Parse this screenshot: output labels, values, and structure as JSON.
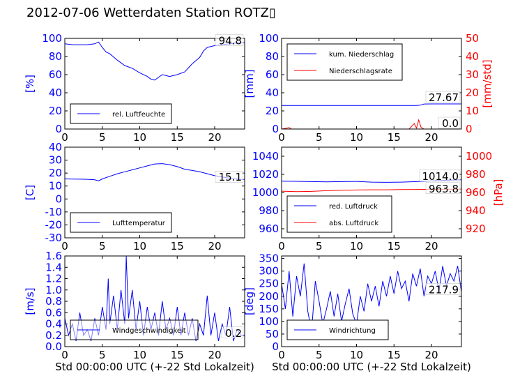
{
  "title": "2012-07-06 Wetterdaten Station ROTZ▯",
  "colors": {
    "primary": "#0000ff",
    "secondary": "#ff0000",
    "text": "#000000"
  },
  "chart_data": [
    {
      "type": "line",
      "ylabel": "[%]",
      "ylabel_color": "blue",
      "xlim": [
        0,
        24
      ],
      "ylim": [
        0,
        100
      ],
      "xticks": [
        0,
        5,
        10,
        15,
        20
      ],
      "yticks": [
        0,
        20,
        40,
        60,
        80,
        100
      ],
      "legend": [
        "rel. Luftfeuchte"
      ],
      "legend_position": "lower left",
      "annotation": "94.8",
      "series": [
        {
          "name": "rel. Luftfeuchte",
          "color": "blue",
          "axis": "left",
          "x": [
            0,
            1,
            2,
            3,
            4,
            4.5,
            5,
            5.5,
            6,
            7,
            8,
            9,
            10,
            11,
            11.5,
            12,
            12.5,
            13,
            14,
            15,
            16,
            17,
            18,
            18.5,
            19,
            20,
            21,
            22,
            23,
            24
          ],
          "y": [
            94,
            93,
            93,
            93,
            94,
            96,
            90,
            85,
            83,
            76,
            70,
            67,
            62,
            58,
            55,
            54,
            57,
            60,
            58,
            60,
            63,
            72,
            79,
            86,
            90,
            92,
            93,
            94,
            95,
            95
          ]
        }
      ]
    },
    {
      "type": "line",
      "ylabel": "[mm]",
      "ylabel_color": "blue",
      "y2label": "[mm/std]",
      "y2label_color": "red",
      "xlim": [
        0,
        24
      ],
      "ylim": [
        0,
        100
      ],
      "y2lim": [
        0,
        50
      ],
      "xticks": [
        0,
        5,
        10,
        15,
        20
      ],
      "yticks": [
        0,
        20,
        40,
        60,
        80,
        100
      ],
      "y2ticks": [
        0,
        10,
        20,
        30,
        40,
        50
      ],
      "legend": [
        "kum. Niederschlag",
        "Niederschlagsrate"
      ],
      "legend_position": "upper left",
      "annotations": [
        "27.67",
        "0.0"
      ],
      "series": [
        {
          "name": "kum. Niederschlag",
          "color": "blue",
          "axis": "left",
          "x": [
            0,
            17,
            18,
            18.5,
            19,
            20,
            24
          ],
          "y": [
            25.9,
            25.9,
            26,
            26.3,
            27.6,
            27.67,
            27.67
          ]
        },
        {
          "name": "Niederschlagsrate",
          "color": "red",
          "axis": "right",
          "x": [
            0,
            0.7,
            1,
            1.3,
            2,
            17,
            17.7,
            18,
            18.3,
            18.6,
            19,
            19.3,
            20,
            24
          ],
          "y": [
            0,
            0.5,
            0.8,
            0,
            0,
            0,
            3,
            0.5,
            5,
            1,
            0,
            0,
            0,
            0
          ]
        }
      ]
    },
    {
      "type": "line",
      "ylabel": "[C]",
      "ylabel_color": "blue",
      "xlim": [
        0,
        24
      ],
      "ylim": [
        -30,
        40
      ],
      "xticks": [
        0,
        5,
        10,
        15,
        20
      ],
      "yticks": [
        -30,
        -20,
        -10,
        0,
        10,
        20,
        30,
        40
      ],
      "legend": [
        "Lufttemperatur"
      ],
      "legend_position": "lower left",
      "annotation": "15.1",
      "series": [
        {
          "name": "Lufttemperatur",
          "color": "blue",
          "axis": "left",
          "x": [
            0,
            1,
            2,
            3,
            4,
            4.5,
            5,
            6,
            7,
            8,
            9,
            10,
            11,
            12,
            13,
            14,
            15,
            16,
            17,
            18,
            19,
            20,
            21,
            22,
            23,
            24
          ],
          "y": [
            15.5,
            15.4,
            15.3,
            15.2,
            14.8,
            14.0,
            15.5,
            17.5,
            19.5,
            21,
            22.5,
            24,
            25.5,
            27,
            27.3,
            26.5,
            25,
            23,
            22,
            21,
            19.5,
            18,
            17,
            16,
            15.3,
            15.1
          ]
        }
      ]
    },
    {
      "type": "line",
      "ylabel": "[hPa]",
      "ylabel_color": "red",
      "ylabel_side": "right",
      "xlim": [
        0,
        24
      ],
      "ylim": [
        950,
        1050
      ],
      "y2lim": [
        910,
        1010
      ],
      "xticks": [
        0,
        5,
        10,
        15,
        20
      ],
      "yticks": [
        960,
        980,
        1000,
        1020,
        1040
      ],
      "y2ticks": [
        920,
        940,
        960,
        980,
        1000
      ],
      "legend": [
        "red. Luftdruck",
        "abs. Luftdruck"
      ],
      "legend_position": "lower left",
      "annotations": [
        "1014.0",
        "963.8"
      ],
      "series": [
        {
          "name": "red. Luftdruck",
          "color": "blue",
          "axis": "left",
          "x": [
            0,
            2,
            4,
            6,
            8,
            10,
            12,
            14,
            16,
            18,
            20,
            22,
            24
          ],
          "y": [
            1012.5,
            1012.3,
            1012,
            1011.8,
            1012,
            1012.2,
            1011.5,
            1011.2,
            1011.5,
            1012,
            1012.8,
            1013.5,
            1014
          ]
        },
        {
          "name": "abs. Luftdruck",
          "color": "red",
          "axis": "right",
          "x": [
            0,
            2,
            4,
            6,
            8,
            10,
            12,
            14,
            16,
            18,
            20,
            22,
            24
          ],
          "y": [
            961.5,
            961,
            961.2,
            962,
            962.5,
            962.8,
            963,
            963,
            963.2,
            963.4,
            963.5,
            963.7,
            963.8
          ]
        }
      ]
    },
    {
      "type": "line",
      "ylabel": "[m/s]",
      "ylabel_color": "blue",
      "xlabel": "Std 00:00:00 UTC (+-22 Std Lokalzeit)",
      "xlim": [
        0,
        24
      ],
      "ylim": [
        0,
        1.6
      ],
      "xticks": [
        0,
        5,
        10,
        15,
        20
      ],
      "yticks": [
        0.0,
        0.2,
        0.4,
        0.6,
        0.8,
        1.0,
        1.2,
        1.4,
        1.6
      ],
      "legend": [
        "Windgeschwindigkeit"
      ],
      "legend_position": "lower center",
      "annotation": "0.2",
      "series": [
        {
          "name": "Windgeschwindigkeit",
          "color": "blue",
          "axis": "left",
          "x": [
            0,
            0.5,
            1,
            1.5,
            2,
            2.5,
            3,
            3.5,
            4,
            4.5,
            5,
            5.5,
            5.8,
            6,
            6.5,
            7,
            7.5,
            8,
            8.2,
            8.5,
            9,
            9.5,
            10,
            10.5,
            11,
            11.5,
            12,
            12.5,
            13,
            13.5,
            14,
            14.5,
            15,
            15.5,
            16,
            16.5,
            17,
            17.5,
            18,
            18.5,
            19,
            19.5,
            20,
            20.5,
            21,
            21.5,
            22,
            22.5,
            23,
            23.5,
            24
          ],
          "y": [
            0.5,
            0.2,
            0.4,
            0.1,
            0.6,
            0.2,
            0.3,
            0.1,
            0.5,
            0.2,
            0.7,
            0.3,
            1.2,
            0.4,
            0.9,
            0.3,
            1.0,
            0.4,
            1.6,
            0.5,
            1.0,
            0.3,
            0.8,
            0.2,
            0.7,
            0.3,
            0.6,
            0.2,
            0.8,
            0.3,
            0.5,
            0.2,
            0.7,
            0.2,
            0.6,
            0.2,
            0.5,
            0.1,
            0.4,
            0.2,
            0.9,
            0.2,
            0.6,
            0.1,
            0.4,
            0.2,
            0.7,
            0.1,
            0.3,
            0.2,
            0.2
          ]
        }
      ]
    },
    {
      "type": "line",
      "ylabel": "[deg]",
      "ylabel_color": "blue",
      "xlabel": "Std 00:00:00 UTC (+-22 Std Lokalzeit)",
      "xlim": [
        0,
        24
      ],
      "ylim": [
        0,
        360
      ],
      "xticks": [
        0,
        5,
        10,
        15,
        20
      ],
      "yticks": [
        0,
        50,
        100,
        150,
        200,
        250,
        300,
        350
      ],
      "legend": [
        "Windrichtung"
      ],
      "legend_position": "lower left",
      "annotation": "217.9",
      "series": [
        {
          "name": "Windrichtung",
          "color": "blue",
          "axis": "left",
          "x": [
            0,
            0.5,
            1,
            1.5,
            2,
            2.5,
            3,
            3.5,
            4,
            4.5,
            5,
            5.5,
            6,
            6.5,
            7,
            7.5,
            8,
            8.5,
            9,
            9.5,
            10,
            10.5,
            11,
            11.5,
            12,
            12.5,
            13,
            13.5,
            14,
            14.5,
            15,
            15.5,
            16,
            16.5,
            17,
            17.5,
            18,
            18.5,
            19,
            19.5,
            20,
            20.5,
            21,
            21.5,
            22,
            22.5,
            23,
            23.5,
            24
          ],
          "y": [
            250,
            150,
            300,
            120,
            280,
            200,
            330,
            140,
            60,
            260,
            180,
            90,
            150,
            220,
            120,
            210,
            100,
            170,
            230,
            130,
            90,
            200,
            140,
            250,
            180,
            240,
            160,
            260,
            200,
            280,
            210,
            300,
            230,
            260,
            180,
            290,
            240,
            310,
            200,
            280,
            250,
            300,
            220,
            320,
            240,
            290,
            260,
            320,
            218
          ]
        }
      ]
    }
  ]
}
